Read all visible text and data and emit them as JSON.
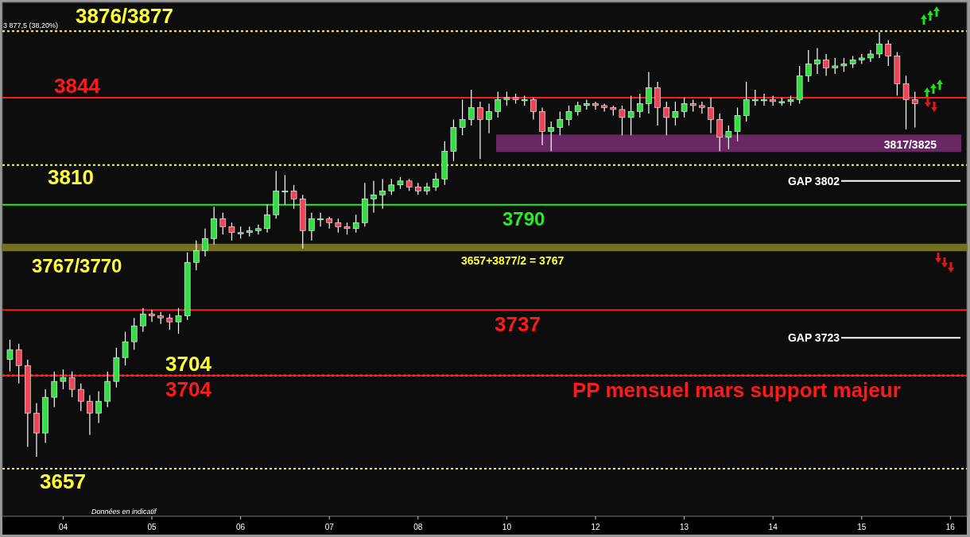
{
  "chart_data": {
    "type": "candlestick",
    "categories": [
      null,
      null,
      null,
      null,
      null,
      null,
      "04",
      null,
      null,
      null,
      null,
      null,
      null,
      null,
      null,
      null,
      "05",
      null,
      null,
      null,
      null,
      null,
      null,
      null,
      null,
      null,
      "06",
      null,
      null,
      null,
      null,
      null,
      null,
      null,
      null,
      null,
      "07",
      null,
      null,
      null,
      null,
      null,
      null,
      null,
      null,
      null,
      "08",
      null,
      null,
      null,
      null,
      null,
      null,
      null,
      null,
      null,
      "10",
      null,
      null,
      null,
      null,
      null,
      null,
      null,
      null,
      null,
      "12",
      null,
      null,
      null,
      null,
      null,
      null,
      null,
      null,
      null,
      "13",
      null,
      null,
      null,
      null,
      null,
      null,
      null,
      null,
      null,
      "14",
      null,
      null,
      null,
      null,
      null,
      null,
      null,
      null,
      null,
      "15",
      null,
      null,
      null,
      null,
      null,
      null,
      null,
      null,
      null,
      "16",
      null
    ],
    "ohlc": [
      [
        3712,
        3722,
        3706,
        3717
      ],
      [
        3717,
        3720,
        3700,
        3709
      ],
      [
        3709,
        3712,
        3668,
        3685
      ],
      [
        3685,
        3690,
        3663,
        3675
      ],
      [
        3675,
        3697,
        3670,
        3693
      ],
      [
        3693,
        3706,
        3688,
        3701
      ],
      [
        3701,
        3707,
        3697,
        3703
      ],
      [
        3703,
        3706,
        3693,
        3697
      ],
      [
        3697,
        3700,
        3686,
        3691
      ],
      [
        3691,
        3694,
        3674,
        3685
      ],
      [
        3685,
        3696,
        3680,
        3691
      ],
      [
        3691,
        3706,
        3688,
        3701
      ],
      [
        3701,
        3718,
        3698,
        3713
      ],
      [
        3713,
        3726,
        3709,
        3721
      ],
      [
        3721,
        3733,
        3717,
        3729
      ],
      [
        3729,
        3738,
        3726,
        3735
      ],
      [
        3735,
        3737,
        3731,
        3734
      ],
      [
        3734,
        3736,
        3730,
        3733
      ],
      [
        3733,
        3735,
        3727,
        3731
      ],
      [
        3731,
        3738,
        3725,
        3734
      ],
      [
        3734,
        3766,
        3732,
        3761
      ],
      [
        3761,
        3772,
        3757,
        3767
      ],
      [
        3767,
        3778,
        3764,
        3773
      ],
      [
        3773,
        3789,
        3770,
        3783
      ],
      [
        3783,
        3786,
        3775,
        3779
      ],
      [
        3779,
        3781,
        3772,
        3776
      ],
      [
        3776,
        3779,
        3773,
        3776
      ],
      [
        3776,
        3779,
        3774,
        3777
      ],
      [
        3777,
        3780,
        3775,
        3778
      ],
      [
        3778,
        3790,
        3776,
        3785
      ],
      [
        3785,
        3807,
        3783,
        3797
      ],
      [
        3797,
        3805,
        3790,
        3797
      ],
      [
        3797,
        3800,
        3788,
        3793
      ],
      [
        3793,
        3795,
        3768,
        3777
      ],
      [
        3777,
        3786,
        3772,
        3783
      ],
      [
        3783,
        3786,
        3779,
        3783
      ],
      [
        3783,
        3784,
        3778,
        3781
      ],
      [
        3781,
        3783,
        3776,
        3779
      ],
      [
        3779,
        3781,
        3775,
        3778
      ],
      [
        3778,
        3785,
        3776,
        3781
      ],
      [
        3781,
        3801,
        3779,
        3793
      ],
      [
        3793,
        3802,
        3786,
        3795
      ],
      [
        3795,
        3803,
        3788,
        3797
      ],
      [
        3797,
        3803,
        3795,
        3800
      ],
      [
        3800,
        3804,
        3798,
        3802
      ],
      [
        3802,
        3803,
        3797,
        3799
      ],
      [
        3799,
        3801,
        3795,
        3797
      ],
      [
        3797,
        3801,
        3795,
        3799
      ],
      [
        3799,
        3806,
        3797,
        3803
      ],
      [
        3803,
        3822,
        3800,
        3817
      ],
      [
        3817,
        3833,
        3812,
        3829
      ],
      [
        3829,
        3843,
        3825,
        3833
      ],
      [
        3833,
        3848,
        3830,
        3839
      ],
      [
        3839,
        3842,
        3813,
        3833
      ],
      [
        3833,
        3841,
        3826,
        3837
      ],
      [
        3837,
        3847,
        3834,
        3843
      ],
      [
        3843,
        3847,
        3840,
        3844
      ],
      [
        3844,
        3846,
        3841,
        3843
      ],
      [
        3843,
        3845,
        3840,
        3843
      ],
      [
        3843,
        3844,
        3833,
        3837
      ],
      [
        3837,
        3839,
        3820,
        3827
      ],
      [
        3827,
        3832,
        3817,
        3829
      ],
      [
        3829,
        3837,
        3825,
        3833
      ],
      [
        3833,
        3840,
        3830,
        3837
      ],
      [
        3837,
        3842,
        3835,
        3840
      ],
      [
        3840,
        3843,
        3838,
        3841
      ],
      [
        3841,
        3842,
        3838,
        3840
      ],
      [
        3840,
        3841,
        3837,
        3839
      ],
      [
        3839,
        3840,
        3835,
        3838
      ],
      [
        3838,
        3840,
        3825,
        3834
      ],
      [
        3834,
        3845,
        3825,
        3837
      ],
      [
        3837,
        3846,
        3834,
        3841
      ],
      [
        3841,
        3857,
        3836,
        3849
      ],
      [
        3849,
        3852,
        3830,
        3839
      ],
      [
        3839,
        3842,
        3825,
        3834
      ],
      [
        3834,
        3842,
        3830,
        3837
      ],
      [
        3837,
        3844,
        3834,
        3841
      ],
      [
        3841,
        3843,
        3837,
        3840
      ],
      [
        3840,
        3842,
        3836,
        3839
      ],
      [
        3839,
        3844,
        3826,
        3833
      ],
      [
        3833,
        3836,
        3817,
        3824
      ],
      [
        3824,
        3830,
        3818,
        3827
      ],
      [
        3827,
        3839,
        3822,
        3835
      ],
      [
        3835,
        3852,
        3832,
        3843
      ],
      [
        3843,
        3848,
        3840,
        3843
      ],
      [
        3843,
        3846,
        3840,
        3843
      ],
      [
        3843,
        3845,
        3840,
        3842
      ],
      [
        3842,
        3844,
        3840,
        3842
      ],
      [
        3842,
        3845,
        3840,
        3843
      ],
      [
        3843,
        3860,
        3841,
        3855
      ],
      [
        3855,
        3868,
        3852,
        3861
      ],
      [
        3861,
        3869,
        3856,
        3863
      ],
      [
        3863,
        3866,
        3855,
        3859
      ],
      [
        3859,
        3864,
        3856,
        3860
      ],
      [
        3860,
        3864,
        3857,
        3861
      ],
      [
        3861,
        3865,
        3859,
        3863
      ],
      [
        3863,
        3866,
        3861,
        3864
      ],
      [
        3864,
        3868,
        3862,
        3866
      ],
      [
        3866,
        3877,
        3864,
        3871
      ],
      [
        3871,
        3873,
        3860,
        3865
      ],
      [
        3865,
        3867,
        3845,
        3851
      ],
      [
        3851,
        3855,
        3828,
        3843
      ],
      [
        3843,
        3847,
        3829,
        3841
      ],
      null,
      null,
      null,
      null,
      null
    ],
    "ylim": [
      3633,
      3892
    ],
    "tick_labels": "x",
    "ref_lines": [
      {
        "axis": "y",
        "value": 3877.5,
        "label": "3876/3877",
        "color": "#ffff33",
        "line_style": "dotted"
      },
      {
        "axis": "y",
        "value": 3844,
        "label": "3844",
        "color": "#ff1a1a",
        "line_style": "solid"
      },
      {
        "axis": "y",
        "value": 3810,
        "label": "3810",
        "color": "#ffff33",
        "line_style": "dotted"
      },
      {
        "axis": "y",
        "value": 3790,
        "label": "3790",
        "color": "#22ee22",
        "line_style": "solid"
      },
      {
        "axis": "y",
        "value": 3737,
        "label": "3737",
        "color": "#ff1a1a",
        "line_style": "solid"
      },
      {
        "axis": "y",
        "value": 3704,
        "label": "3704",
        "color": "#ffff33",
        "line_style": "dotted"
      },
      {
        "axis": "y",
        "value": 3704,
        "label": "3704",
        "color": "#ff1a1a",
        "line_style": "solid"
      },
      {
        "axis": "y",
        "value": 3657,
        "label": "3657",
        "color": "#ffff33",
        "line_style": "dotted"
      },
      {
        "axis": "y",
        "value": 3802,
        "label": "GAP 3802",
        "color": "#ffffff",
        "line_style": "solid"
      },
      {
        "axis": "y",
        "value": 3723,
        "label": "GAP 3723",
        "color": "#ffffff",
        "line_style": "solid"
      }
    ],
    "bands": [
      {
        "axis": "y",
        "from": 3767,
        "to": 3770,
        "label": "3767/3770",
        "color": "#77771f"
      },
      {
        "axis": "y",
        "from": 3817,
        "to": 3825,
        "label": "3817/3825",
        "color": "#6e2a68"
      }
    ],
    "annotations": [
      {
        "text": "3 877,5 (38,20%)",
        "y": 3877.5
      },
      {
        "text": "3657+3877/2 = 3767",
        "y": 3767
      },
      {
        "text": "PP mensuel mars support majeur",
        "y": 3704
      },
      "Données en indicatif"
    ]
  }
}
